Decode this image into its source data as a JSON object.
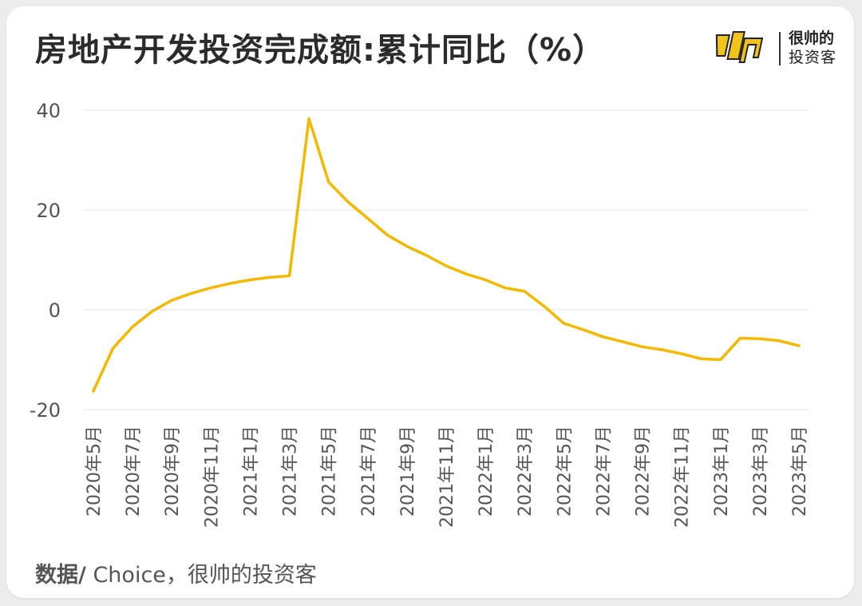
{
  "title": "房地产开发投资完成额:累计同比（%）",
  "brand": {
    "line1": "很帅的",
    "line2": "投资客",
    "accent": "#f2c31b"
  },
  "source": {
    "label": "数据/",
    "text": " Choice，很帅的投资客"
  },
  "chart_data": {
    "type": "line",
    "title": "房地产开发投资完成额:累计同比（%）",
    "xlabel": "",
    "ylabel": "",
    "ylim": [
      -20,
      40
    ],
    "yticks": [
      40,
      20,
      0,
      -20
    ],
    "grid": true,
    "line_color": "#f5b800",
    "categories": [
      "2020年5月",
      "2020年6月",
      "2020年7月",
      "2020年8月",
      "2020年9月",
      "2020年10月",
      "2020年11月",
      "2020年12月",
      "2021年1月",
      "2021年2月",
      "2021年3月",
      "2021年4月",
      "2021年5月",
      "2021年6月",
      "2021年7月",
      "2021年8月",
      "2021年9月",
      "2021年10月",
      "2021年11月",
      "2021年12月",
      "2022年1月",
      "2022年2月",
      "2022年3月",
      "2022年4月",
      "2022年5月",
      "2022年6月",
      "2022年7月",
      "2022年8月",
      "2022年9月",
      "2022年10月",
      "2022年11月",
      "2022年12月",
      "2023年1月",
      "2023年2月",
      "2023年3月",
      "2023年4月",
      "2023年5月"
    ],
    "tick_labels": [
      "2020年5月",
      "2020年7月",
      "2020年9月",
      "2020年11月",
      "2021年1月",
      "2021年3月",
      "2021年5月",
      "2021年7月",
      "2021年9月",
      "2021年11月",
      "2022年1月",
      "2022年3月",
      "2022年5月",
      "2022年7月",
      "2022年9月",
      "2022年11月",
      "2023年1月",
      "2023年3月",
      "2023年5月"
    ],
    "series": [
      {
        "values": [
          -16.3,
          -7.7,
          -3.4,
          -0.3,
          1.9,
          3.3,
          4.4,
          5.3,
          6.0,
          6.5,
          6.8,
          38.3,
          25.6,
          21.6,
          18.3,
          15.0,
          12.7,
          10.9,
          8.8,
          7.2,
          6.0,
          4.4,
          3.7,
          0.7,
          -2.7,
          -4.0,
          -5.4,
          -6.4,
          -7.4,
          -8.0,
          -8.8,
          -9.8,
          -10.0,
          -5.7,
          -5.8,
          -6.2,
          -7.2
        ]
      }
    ]
  }
}
